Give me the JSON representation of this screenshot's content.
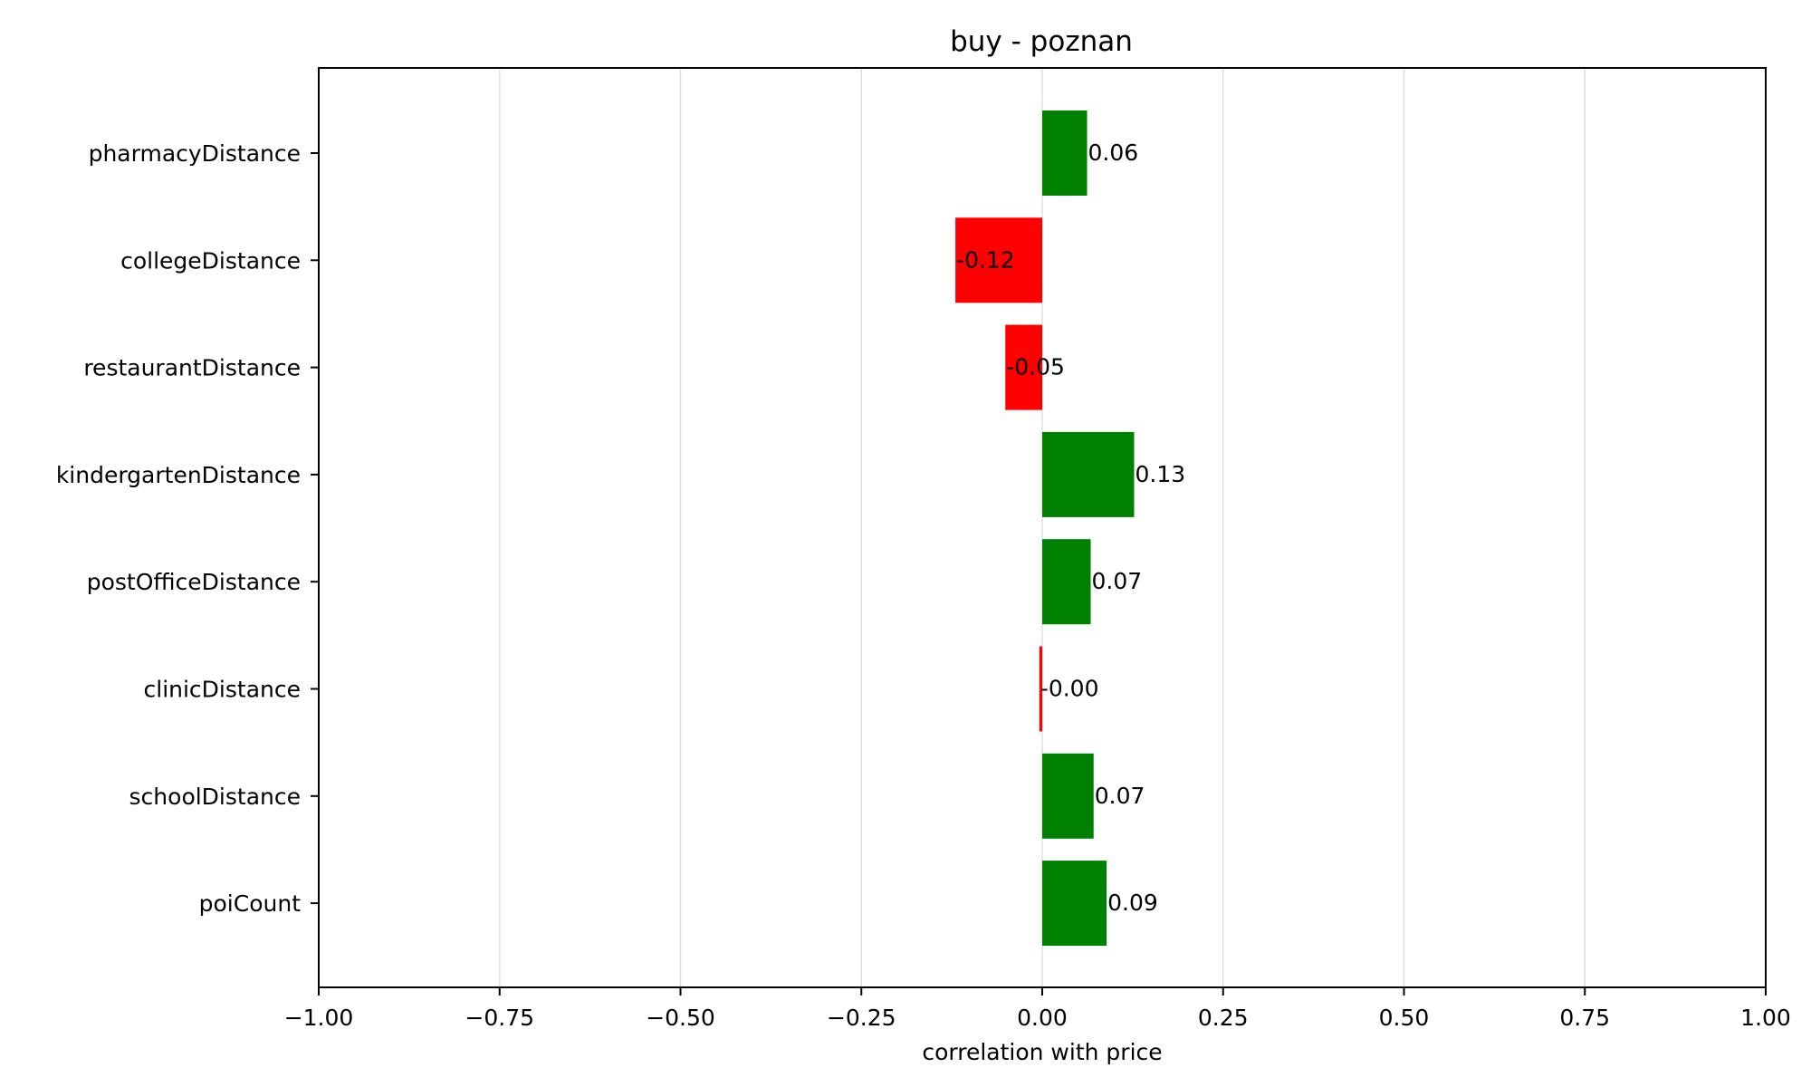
{
  "chart_data": {
    "type": "bar",
    "orientation": "horizontal",
    "title": "buy - poznan",
    "xlabel": "correlation with price",
    "ylabel": "",
    "xlim": [
      -1.0,
      1.0
    ],
    "xticks": [
      -1.0,
      -0.75,
      -0.5,
      -0.25,
      0.0,
      0.25,
      0.5,
      0.75,
      1.0
    ],
    "xtick_labels": [
      "−1.00",
      "−0.75",
      "−0.50",
      "−0.25",
      "0.00",
      "0.25",
      "0.50",
      "0.75",
      "1.00"
    ],
    "grid": "vertical",
    "categories": [
      "pharmacyDistance",
      "collegeDistance",
      "restaurantDistance",
      "kindergartenDistance",
      "postOfficeDistance",
      "clinicDistance",
      "schoolDistance",
      "poiCount"
    ],
    "values": [
      0.062,
      -0.12,
      -0.051,
      0.127,
      0.067,
      -0.004,
      0.071,
      0.089
    ],
    "value_labels": [
      "0.06",
      "-0.12",
      "-0.05",
      "0.13",
      "0.07",
      "-0.00",
      "0.07",
      "0.09"
    ],
    "colors": {
      "positive": "#008000",
      "negative": "#ff0000"
    }
  }
}
